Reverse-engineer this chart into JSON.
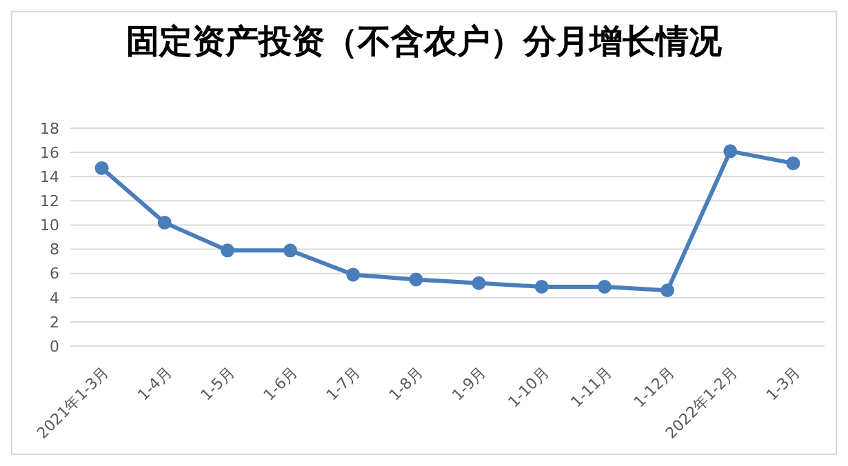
{
  "chart_data": {
    "type": "line",
    "title": "固定资产投资（不含农户）分月增长情况",
    "categories": [
      "2021年1-3月",
      "1-4月",
      "1-5月",
      "1-6月",
      "1-7月",
      "1-8月",
      "1-9月",
      "1-10月",
      "1-11月",
      "1-12月",
      "2022年1-2月",
      "1-3月"
    ],
    "series": [
      {
        "color": "#4a7ebb",
        "values": [
          14.7,
          10.2,
          7.9,
          7.9,
          5.9,
          5.5,
          5.2,
          4.9,
          4.9,
          4.6,
          16.1,
          15.1
        ]
      }
    ],
    "ylim": [
      0,
      18
    ],
    "yticks": [
      0,
      2,
      4,
      6,
      8,
      10,
      12,
      14,
      16,
      18
    ],
    "grid": "y",
    "legend": false,
    "marker": "circle",
    "line_style": "solid"
  }
}
